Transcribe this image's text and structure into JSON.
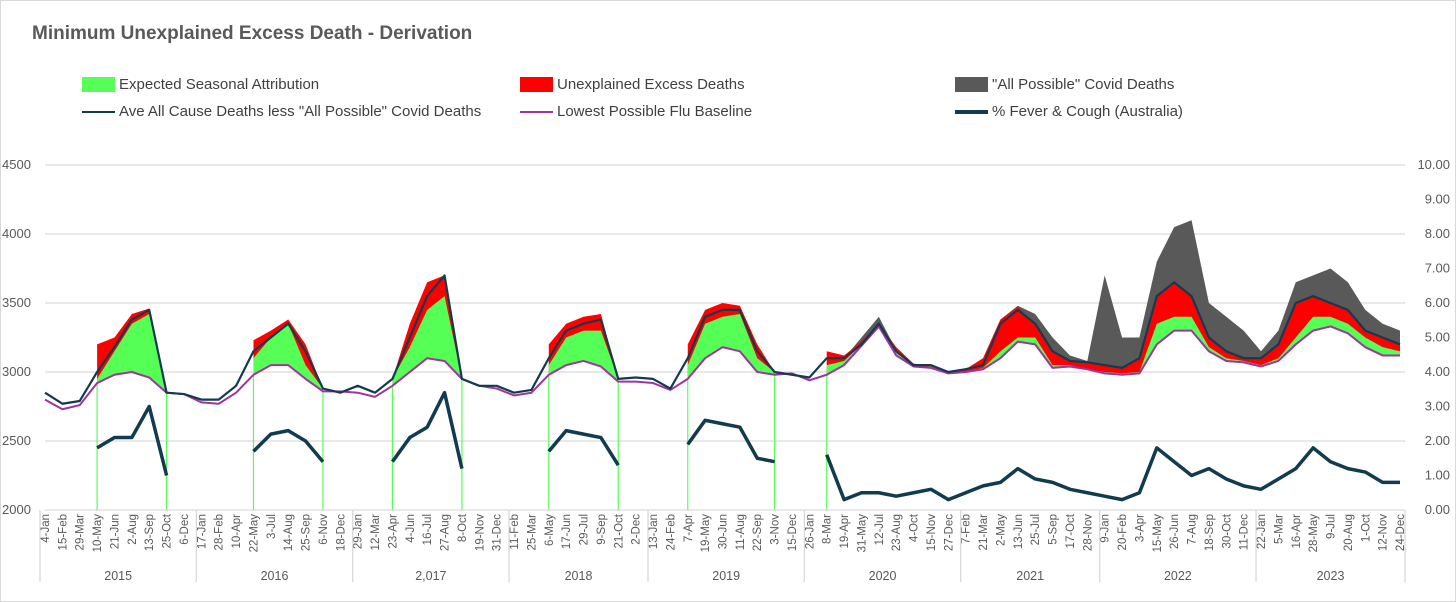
{
  "title": "Minimum Unexplained Excess Death - Derivation",
  "legend": [
    {
      "label": "Expected Seasonal Attribution",
      "kind": "box",
      "color": "#55ff55"
    },
    {
      "label": "Unexplained Excess Deaths",
      "kind": "box",
      "color": "#ff0000"
    },
    {
      "label": "\"All Possible\" Covid Deaths",
      "kind": "box",
      "color": "#595959"
    },
    {
      "label": "Ave All Cause Deaths less \"All Possible\" Covid Deaths",
      "kind": "line",
      "color": "#123b50"
    },
    {
      "label": "Lowest Possible Flu Baseline",
      "kind": "line",
      "color": "#a033a0"
    },
    {
      "label": "% Fever & Cough (Australia)",
      "kind": "thickline",
      "color": "#123b50"
    }
  ],
  "chart_data": {
    "type": "area",
    "title": "Minimum Unexplained Excess Death - Derivation",
    "y_left": {
      "min": 2000,
      "max": 4500,
      "ticks": [
        "2000",
        "2500",
        "3000",
        "3500",
        "4000",
        "4500"
      ]
    },
    "y_right": {
      "min": 0,
      "max": 10,
      "ticks": [
        "0.00",
        "1.00",
        "2.00",
        "3.00",
        "4.00",
        "5.00",
        "6.00",
        "7.00",
        "8.00",
        "9.00",
        "10.00"
      ]
    },
    "grid": true,
    "legend_position": "top",
    "years": [
      {
        "label": "2015",
        "from": 0,
        "to": 8
      },
      {
        "label": "2016",
        "from": 9,
        "to": 17
      },
      {
        "label": "2,017",
        "from": 18,
        "to": 26
      },
      {
        "label": "2018",
        "from": 27,
        "to": 34
      },
      {
        "label": "2019",
        "from": 35,
        "to": 43
      },
      {
        "label": "2020",
        "from": 44,
        "to": 52
      },
      {
        "label": "2021",
        "from": 53,
        "to": 60
      },
      {
        "label": "2022",
        "from": 61,
        "to": 69
      },
      {
        "label": "2023",
        "from": 70,
        "to": 78
      }
    ],
    "x": [
      "4-Jan",
      "15-Feb",
      "29-Mar",
      "10-May",
      "21-Jun",
      "2-Aug",
      "13-Sep",
      "25-Oct",
      "6-Dec",
      "17-Jan",
      "28-Feb",
      "10-Apr",
      "22-May",
      "3-Jul",
      "14-Aug",
      "25-Sep",
      "6-Nov",
      "18-Dec",
      "29-Jan",
      "12-Mar",
      "23-Apr",
      "4-Jun",
      "16-Jul",
      "27-Aug",
      "8-Oct",
      "19-Nov",
      "31-Dec",
      "11-Feb",
      "25-Mar",
      "6-May",
      "17-Jun",
      "29-Jul",
      "9-Sep",
      "21-Oct",
      "2-Dec",
      "13-Jan",
      "24-Feb",
      "7-Apr",
      "19-May",
      "30-Jun",
      "11-Aug",
      "22-Sep",
      "3-Nov",
      "15-Dec",
      "26-Jan",
      "8-Mar",
      "19-Apr",
      "31-May",
      "12-Jul",
      "23-Aug",
      "4-Oct",
      "15-Nov",
      "27-Dec",
      "7-Feb",
      "21-Mar",
      "2-May",
      "13-Jun",
      "25-Jul",
      "5-Sep",
      "17-Oct",
      "28-Nov",
      "9-Jan",
      "20-Feb",
      "3-Apr",
      "15-May",
      "26-Jun",
      "7-Aug",
      "18-Sep",
      "30-Oct",
      "11-Dec",
      "22-Jan",
      "5-Mar",
      "16-Apr",
      "28-May",
      "9-Jul",
      "20-Aug",
      "1-Oct",
      "12-Nov",
      "24-Dec"
    ],
    "seasons": [
      [
        3,
        7
      ],
      [
        12,
        16
      ],
      [
        20,
        24
      ],
      [
        29,
        33
      ],
      [
        37,
        42
      ],
      [
        45,
        78
      ]
    ],
    "series": [
      {
        "name": "Ave All Cause Deaths less \"All Possible\" Covid Deaths",
        "axis": "left",
        "values": [
          2850,
          2770,
          2790,
          3000,
          3180,
          3380,
          3450,
          2850,
          2840,
          2800,
          2800,
          2900,
          3150,
          3250,
          3350,
          3150,
          2880,
          2850,
          2900,
          2850,
          2950,
          3250,
          3550,
          3700,
          2950,
          2900,
          2900,
          2850,
          2870,
          3100,
          3300,
          3350,
          3380,
          2950,
          2960,
          2950,
          2880,
          3100,
          3400,
          3450,
          3450,
          3150,
          3000,
          2980,
          2960,
          3100,
          3100,
          3200,
          3350,
          3150,
          3050,
          3050,
          3000,
          3020,
          3050,
          3350,
          3450,
          3350,
          3150,
          3080,
          3070,
          3050,
          3030,
          3100,
          3550,
          3650,
          3550,
          3250,
          3150,
          3100,
          3100,
          3200,
          3500,
          3550,
          3500,
          3450,
          3300,
          3250,
          3200
        ]
      },
      {
        "name": "Unexplained Excess Deaths (top)",
        "axis": "left",
        "values": [
          null,
          null,
          null,
          3200,
          3250,
          3420,
          3460,
          2850,
          null,
          null,
          null,
          null,
          3230,
          3300,
          3380,
          3200,
          2880,
          null,
          null,
          null,
          2950,
          3350,
          3650,
          3700,
          2950,
          null,
          null,
          null,
          null,
          3200,
          3350,
          3400,
          3420,
          2950,
          null,
          null,
          null,
          3200,
          3450,
          3500,
          3480,
          3200,
          3000,
          null,
          null,
          3150,
          3120,
          3220,
          3350,
          3180,
          3060,
          3050,
          3000,
          3020,
          3100,
          3380,
          3470,
          3350,
          3150,
          3080,
          3060,
          3050,
          3030,
          3100,
          3550,
          3650,
          3550,
          3250,
          3150,
          3100,
          3100,
          3200,
          3500,
          3550,
          3500,
          3450,
          3300,
          3250,
          3200
        ]
      },
      {
        "name": "Expected Seasonal Attribution (top)",
        "axis": "left",
        "values": [
          null,
          null,
          null,
          2950,
          3150,
          3350,
          3420,
          2850,
          null,
          null,
          null,
          null,
          3100,
          3250,
          3350,
          3050,
          2880,
          null,
          null,
          null,
          2950,
          3180,
          3450,
          3550,
          2950,
          null,
          null,
          null,
          null,
          3050,
          3250,
          3300,
          3300,
          2950,
          null,
          null,
          null,
          3050,
          3350,
          3400,
          3420,
          3100,
          3000,
          null,
          null,
          3050,
          3080,
          3200,
          3340,
          3140,
          3040,
          3040,
          2990,
          3000,
          3030,
          3150,
          3250,
          3250,
          3050,
          3050,
          3020,
          3000,
          2990,
          3000,
          3350,
          3400,
          3400,
          3180,
          3100,
          3080,
          3050,
          3100,
          3250,
          3400,
          3400,
          3350,
          3250,
          3180,
          3150
        ]
      },
      {
        "name": "\"All Possible\" Covid Deaths (top)",
        "axis": "left",
        "values": [
          null,
          null,
          null,
          null,
          null,
          null,
          null,
          null,
          null,
          null,
          null,
          null,
          null,
          null,
          null,
          null,
          null,
          null,
          null,
          null,
          null,
          null,
          null,
          null,
          null,
          null,
          null,
          null,
          null,
          null,
          null,
          null,
          null,
          null,
          null,
          null,
          null,
          null,
          null,
          null,
          null,
          null,
          null,
          null,
          null,
          null,
          3100,
          3250,
          3400,
          3160,
          3060,
          3050,
          3000,
          3020,
          3100,
          3380,
          3480,
          3420,
          3250,
          3120,
          3080,
          3700,
          3250,
          3250,
          3800,
          4050,
          4100,
          3500,
          3400,
          3300,
          3150,
          3300,
          3650,
          3700,
          3750,
          3650,
          3450,
          3350,
          3300
        ]
      },
      {
        "name": "Lowest Possible Flu Baseline",
        "axis": "left",
        "values": [
          2800,
          2730,
          2760,
          2920,
          2980,
          3000,
          2960,
          2850,
          2840,
          2780,
          2770,
          2850,
          2980,
          3050,
          3050,
          2950,
          2860,
          2860,
          2850,
          2820,
          2900,
          3000,
          3100,
          3080,
          2950,
          2900,
          2880,
          2830,
          2850,
          2980,
          3050,
          3080,
          3040,
          2930,
          2930,
          2920,
          2870,
          2950,
          3100,
          3180,
          3150,
          3000,
          2980,
          2990,
          2940,
          2980,
          3050,
          3190,
          3330,
          3120,
          3040,
          3030,
          2990,
          3000,
          3020,
          3100,
          3220,
          3200,
          3030,
          3040,
          3020,
          2990,
          2980,
          2990,
          3200,
          3300,
          3300,
          3150,
          3080,
          3070,
          3040,
          3080,
          3200,
          3300,
          3330,
          3280,
          3180,
          3120,
          3120
        ]
      },
      {
        "name": "% Fever & Cough (Australia)",
        "axis": "right",
        "values": [
          null,
          null,
          null,
          1.8,
          2.1,
          2.1,
          3.0,
          1.0,
          null,
          null,
          null,
          null,
          1.7,
          2.2,
          2.3,
          2.0,
          1.4,
          null,
          null,
          null,
          1.4,
          2.1,
          2.4,
          3.4,
          1.2,
          null,
          null,
          null,
          null,
          1.7,
          2.3,
          2.2,
          2.1,
          1.3,
          null,
          null,
          null,
          1.9,
          2.6,
          2.5,
          2.4,
          1.5,
          1.4,
          null,
          null,
          1.6,
          0.3,
          0.5,
          0.5,
          0.4,
          0.5,
          0.6,
          0.3,
          0.5,
          0.7,
          0.8,
          1.2,
          0.9,
          0.8,
          0.6,
          0.5,
          0.4,
          0.3,
          0.5,
          1.8,
          1.4,
          1.0,
          1.2,
          0.9,
          0.7,
          0.6,
          0.9,
          1.2,
          1.8,
          1.4,
          1.2,
          1.1,
          0.8,
          0.8
        ]
      }
    ]
  }
}
